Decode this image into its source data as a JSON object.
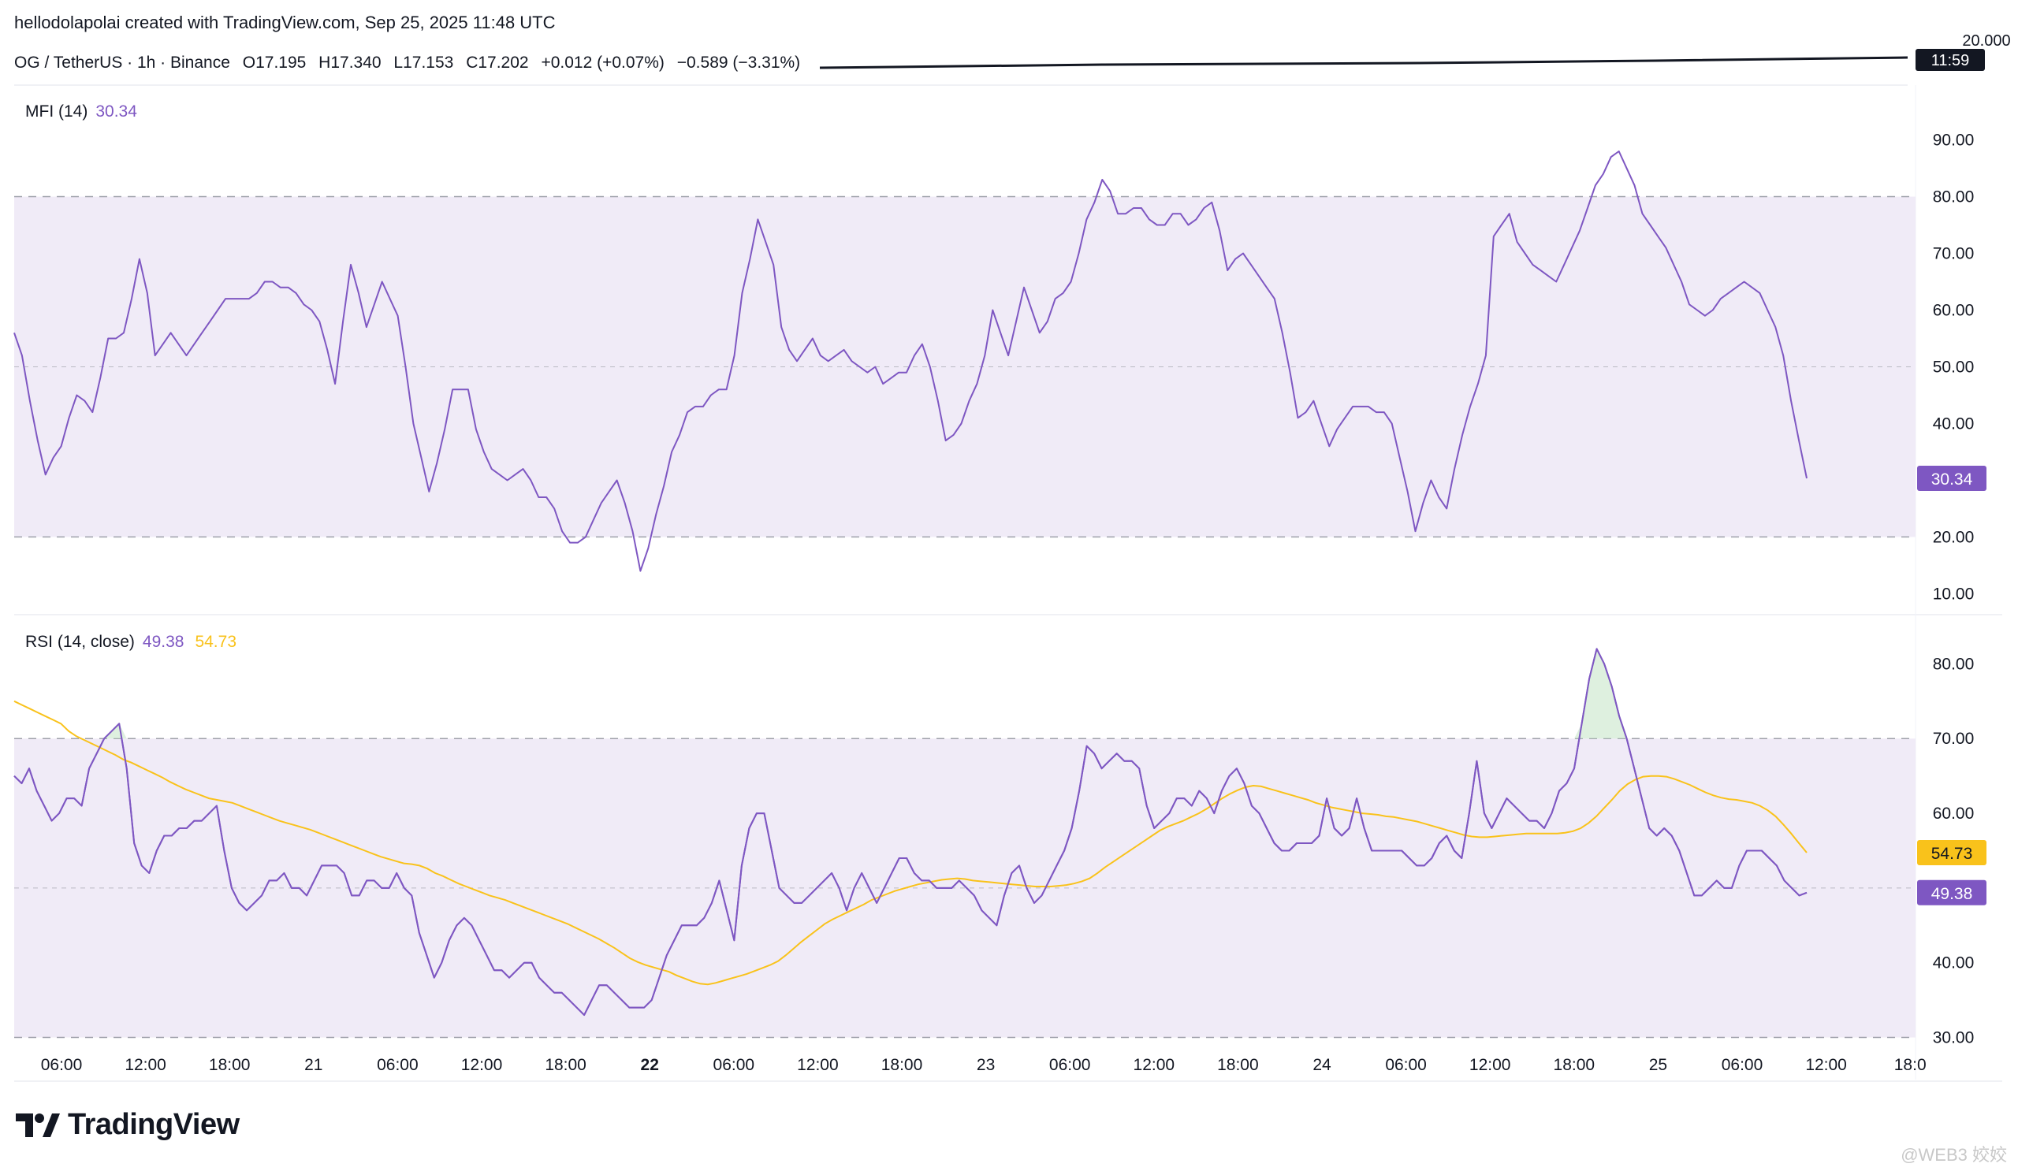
{
  "header": {
    "credit": "hellodolapolai created with TradingView.com, Sep 25, 2025 11:48 UTC",
    "symbol": "OG / TetherUS · 1h · Binance",
    "open": "O17.195",
    "high": "H17.340",
    "low": "L17.153",
    "close": "C17.202",
    "change": "+0.012 (+0.07%)",
    "change2": "−0.589 (−3.31%)",
    "price_axis_top": "20.000",
    "time_badge": "11:59"
  },
  "colors": {
    "mfi": "#7e57c2",
    "rsi": "#7e57c2",
    "rsi_ma": "#f9c21b",
    "band_fill": "#ede7f6",
    "grid_dash": "#9598a1"
  },
  "branding": {
    "logo_icon": "tradingview-logo-icon",
    "logo_text": "TradingView",
    "watermark": "@WEB3 姣姣"
  },
  "chart_data": [
    {
      "type": "line",
      "name": "MFI (14)",
      "label": "MFI (14)",
      "last_value": "30.34",
      "ylim": [
        7,
        98
      ],
      "yticks": [
        "90.00",
        "80.00",
        "70.00",
        "60.00",
        "50.00",
        "40.00",
        "20.00",
        "10.00"
      ],
      "ytick_values": [
        90,
        80,
        70,
        60,
        50,
        40,
        20,
        10
      ],
      "band": [
        20,
        80
      ],
      "midline": 50,
      "values": [
        56,
        52,
        44,
        37,
        31,
        34,
        36,
        41,
        45,
        44,
        42,
        48,
        55,
        55,
        56,
        62,
        69,
        63,
        52,
        54,
        56,
        54,
        52,
        54,
        56,
        58,
        60,
        62,
        62,
        62,
        62,
        63,
        65,
        65,
        64,
        64,
        63,
        61,
        60,
        58,
        53,
        47,
        58,
        68,
        63,
        57,
        61,
        65,
        62,
        59,
        50,
        40,
        34,
        28,
        33,
        39,
        46,
        46,
        46,
        39,
        35,
        32,
        31,
        30,
        31,
        32,
        30,
        27,
        27,
        25,
        21,
        19,
        19,
        20,
        23,
        26,
        28,
        30,
        26,
        21,
        14,
        18,
        24,
        29,
        35,
        38,
        42,
        43,
        43,
        45,
        46,
        46,
        52,
        63,
        69,
        76,
        72,
        68,
        57,
        53,
        51,
        53,
        55,
        52,
        51,
        52,
        53,
        51,
        50,
        49,
        50,
        47,
        48,
        49,
        49,
        52,
        54,
        50,
        44,
        37,
        38,
        40,
        44,
        47,
        52,
        60,
        56,
        52,
        58,
        64,
        60,
        56,
        58,
        62,
        63,
        65,
        70,
        76,
        79,
        83,
        81,
        77,
        77,
        78,
        78,
        76,
        75,
        75,
        77,
        77,
        75,
        76,
        78,
        79,
        74,
        67,
        69,
        70,
        68,
        66,
        64,
        62,
        56,
        49,
        41,
        42,
        44,
        40,
        36,
        39,
        41,
        43,
        43,
        43,
        42,
        42,
        40,
        34,
        28,
        21,
        26,
        30,
        27,
        25,
        32,
        38,
        43,
        47,
        52,
        73,
        75,
        77,
        72,
        70,
        68,
        67,
        66,
        65,
        68,
        71,
        74,
        78,
        82,
        84,
        87,
        88,
        85,
        82,
        77,
        75,
        73,
        71,
        68,
        65,
        61,
        60,
        59,
        60,
        62,
        63,
        64,
        65,
        64,
        63,
        60,
        57,
        52,
        44,
        37,
        30.34
      ]
    },
    {
      "type": "line",
      "name": "RSI (14, close)",
      "label": "RSI (14, close)",
      "last_value": "49.38",
      "ma_last_value": "54.73",
      "ylim": [
        27,
        85
      ],
      "yticks": [
        "80.00",
        "70.00",
        "60.00",
        "40.00",
        "30.00"
      ],
      "ytick_values": [
        80,
        70,
        60,
        40,
        30
      ],
      "band": [
        30,
        70
      ],
      "midline": 50,
      "values": [
        65,
        64,
        66,
        63,
        61,
        59,
        60,
        62,
        62,
        61,
        66,
        68,
        70,
        71,
        72,
        66,
        56,
        53,
        52,
        55,
        57,
        57,
        58,
        58,
        59,
        59,
        60,
        61,
        55,
        50,
        48,
        47,
        48,
        49,
        51,
        51,
        52,
        50,
        50,
        49,
        51,
        53,
        53,
        53,
        52,
        49,
        49,
        51,
        51,
        50,
        50,
        52,
        50,
        49,
        44,
        41,
        38,
        40,
        43,
        45,
        46,
        45,
        43,
        41,
        39,
        39,
        38,
        39,
        40,
        40,
        38,
        37,
        36,
        36,
        35,
        34,
        33,
        35,
        37,
        37,
        36,
        35,
        34,
        34,
        34,
        35,
        38,
        41,
        43,
        45,
        45,
        45,
        46,
        48,
        51,
        47,
        43,
        53,
        58,
        60,
        60,
        55,
        50,
        49,
        48,
        48,
        49,
        50,
        51,
        52,
        50,
        47,
        50,
        52,
        50,
        48,
        50,
        52,
        54,
        54,
        52,
        51,
        51,
        50,
        50,
        50,
        51,
        50,
        49,
        47,
        46,
        45,
        49,
        52,
        53,
        50,
        48,
        49,
        51,
        53,
        55,
        58,
        63,
        69,
        68,
        66,
        67,
        68,
        67,
        67,
        66,
        61,
        58,
        59,
        60,
        62,
        62,
        61,
        63,
        62,
        60,
        63,
        65,
        66,
        64,
        61,
        60,
        58,
        56,
        55,
        55,
        56,
        56,
        56,
        57,
        62,
        58,
        57,
        58,
        62,
        58,
        55,
        55,
        55,
        55,
        55,
        54,
        53,
        53,
        54,
        56,
        57,
        55,
        54,
        60,
        67,
        60,
        58,
        60,
        62,
        61,
        60,
        59,
        59,
        58,
        60,
        63,
        64,
        66,
        72,
        78,
        82,
        80,
        77,
        73,
        70,
        66,
        62,
        58,
        57,
        58,
        57,
        55,
        52,
        49,
        49,
        50,
        51,
        50,
        50,
        53,
        55,
        55,
        55,
        54,
        53,
        51,
        50,
        49,
        49.38
      ],
      "ma_values": [
        75,
        74.5,
        74,
        73.5,
        73,
        72.5,
        72,
        71,
        70.3,
        69.8,
        69.3,
        68.8,
        68.3,
        67.8,
        67.2,
        66.8,
        66.3,
        65.8,
        65.3,
        64.8,
        64.2,
        63.7,
        63.2,
        62.8,
        62.4,
        62,
        61.8,
        61.6,
        61.4,
        61,
        60.6,
        60.2,
        59.8,
        59.4,
        59,
        58.7,
        58.4,
        58.1,
        57.8,
        57.4,
        57,
        56.6,
        56.2,
        55.8,
        55.4,
        55,
        54.6,
        54.2,
        53.9,
        53.6,
        53.3,
        53.2,
        53,
        52.6,
        52,
        51.6,
        51.1,
        50.6,
        50.2,
        49.8,
        49.4,
        49,
        48.7,
        48.4,
        48,
        47.6,
        47.2,
        46.8,
        46.4,
        46,
        45.6,
        45.2,
        44.7,
        44.2,
        43.7,
        43.2,
        42.6,
        42,
        41.3,
        40.6,
        40.1,
        39.7,
        39.4,
        39.1,
        38.8,
        38.3,
        37.9,
        37.5,
        37.2,
        37.1,
        37.3,
        37.6,
        37.9,
        38.2,
        38.5,
        38.9,
        39.3,
        39.7,
        40.2,
        41,
        41.9,
        42.8,
        43.6,
        44.4,
        45.2,
        45.8,
        46.3,
        46.8,
        47.3,
        47.8,
        48.4,
        48.8,
        49.2,
        49.6,
        49.9,
        50.2,
        50.5,
        50.7,
        50.9,
        51.1,
        51.2,
        51.3,
        51.2,
        51,
        50.9,
        50.8,
        50.7,
        50.6,
        50.5,
        50.4,
        50.3,
        50.2,
        50.2,
        50.2,
        50.3,
        50.4,
        50.6,
        50.9,
        51.3,
        52,
        52.8,
        53.5,
        54.2,
        54.9,
        55.6,
        56.3,
        57,
        57.7,
        58.2,
        58.6,
        59,
        59.5,
        60,
        60.6,
        61.3,
        62,
        62.6,
        63.1,
        63.5,
        63.7,
        63.6,
        63.3,
        63,
        62.7,
        62.4,
        62.1,
        61.8,
        61.4,
        61.1,
        60.8,
        60.6,
        60.4,
        60.2,
        60,
        59.9,
        59.8,
        59.6,
        59.5,
        59.3,
        59.1,
        58.9,
        58.6,
        58.3,
        58,
        57.7,
        57.4,
        57.1,
        56.9,
        56.8,
        56.8,
        56.9,
        57,
        57.1,
        57.2,
        57.3,
        57.3,
        57.3,
        57.3,
        57.3,
        57.4,
        57.6,
        58,
        58.7,
        59.6,
        60.7,
        61.8,
        63,
        63.9,
        64.5,
        64.9,
        65,
        65,
        64.9,
        64.6,
        64.2,
        63.8,
        63.3,
        62.8,
        62.4,
        62.1,
        61.9,
        61.8,
        61.6,
        61.4,
        61,
        60.4,
        59.6,
        58.5,
        57.3,
        56,
        54.73
      ]
    }
  ],
  "x_axis": {
    "labels": [
      "06:00",
      "12:00",
      "18:00",
      "21",
      "06:00",
      "12:00",
      "18:00",
      "22",
      "06:00",
      "12:00",
      "18:00",
      "23",
      "06:00",
      "12:00",
      "18:00",
      "24",
      "06:00",
      "12:00",
      "18:00",
      "25",
      "06:00",
      "12:00",
      "18:0"
    ],
    "bold": [
      false,
      false,
      false,
      false,
      false,
      false,
      false,
      true,
      false,
      false,
      false,
      false,
      false,
      false,
      false,
      false,
      false,
      false,
      false,
      false,
      false,
      false,
      false
    ]
  }
}
